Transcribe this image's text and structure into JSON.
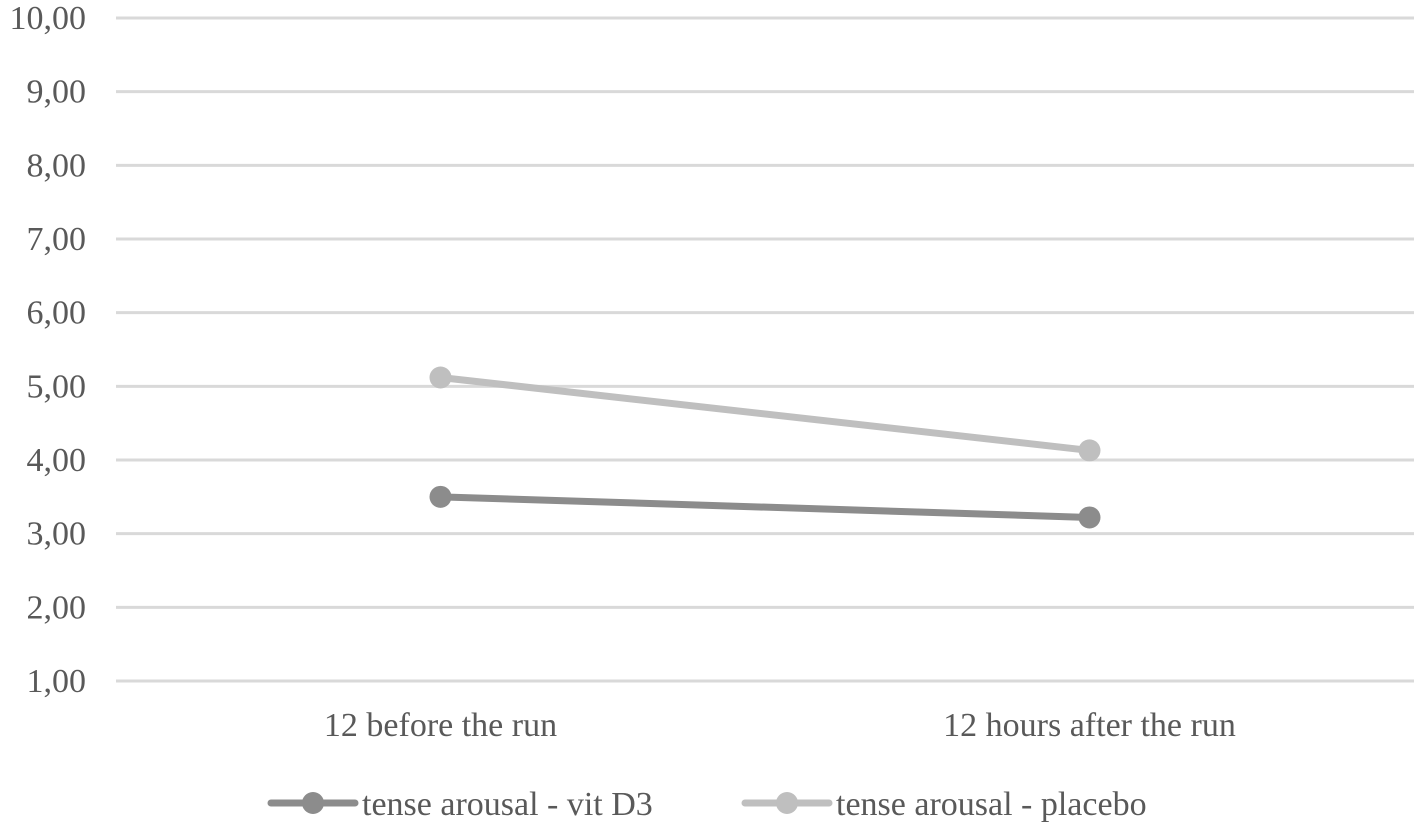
{
  "chart_data": {
    "type": "line",
    "categories": [
      "12 before the run",
      "12 hours after the run"
    ],
    "series": [
      {
        "name": "tense arousal - vit D3",
        "values": [
          3.5,
          3.22
        ],
        "color": "#8c8c8c"
      },
      {
        "name": "tense arousal - placebo",
        "values": [
          5.12,
          4.13
        ],
        "color": "#bfbfbf"
      }
    ],
    "ylim": [
      1,
      10
    ],
    "yticks": [
      "1,00",
      "2,00",
      "3,00",
      "4,00",
      "5,00",
      "6,00",
      "7,00",
      "8,00",
      "9,00",
      "10,00"
    ],
    "grid": true,
    "gridline_color": "#d9d9d9",
    "legend_position": "bottom",
    "title": "",
    "xlabel": "",
    "ylabel": ""
  }
}
